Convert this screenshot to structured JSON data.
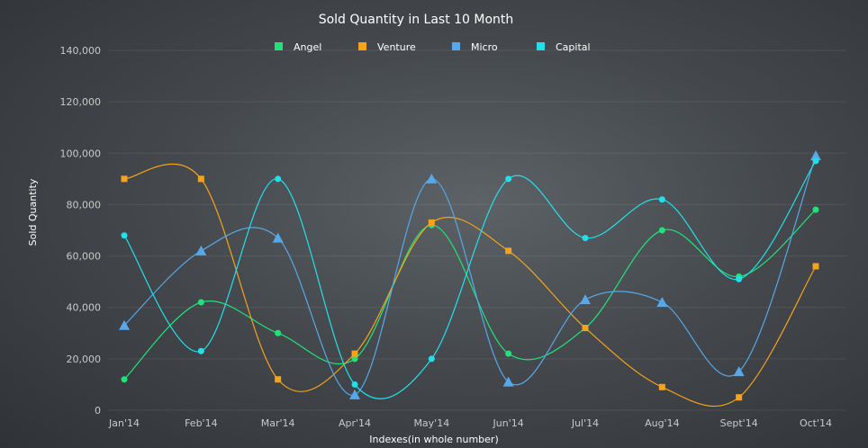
{
  "chart_data": {
    "type": "line",
    "title": "Sold Quantity in Last 10 Month",
    "xlabel": "Indexes(in whole number)",
    "ylabel": "Sold Quantity",
    "categories": [
      "Jan'14",
      "Feb'14",
      "Mar'14",
      "Apr'14",
      "May'14",
      "Jun'14",
      "Jul'14",
      "Aug'14",
      "Sept'14",
      "Oct'14"
    ],
    "ylim": [
      0,
      140000
    ],
    "y_ticks": [
      "0",
      "20,000",
      "40,000",
      "60,000",
      "80,000",
      "100,000",
      "120,000",
      "140,000"
    ],
    "grid": true,
    "legend_position": "top",
    "series": [
      {
        "name": "Angel",
        "color": "#1fe37a",
        "marker": "circle",
        "values": [
          12000,
          42000,
          30000,
          20000,
          72000,
          22000,
          32000,
          70000,
          52000,
          78000
        ]
      },
      {
        "name": "Venture",
        "color": "#f5a31a",
        "marker": "square",
        "values": [
          90000,
          90000,
          12000,
          22000,
          73000,
          62000,
          32000,
          9000,
          5000,
          56000
        ]
      },
      {
        "name": "Micro",
        "color": "#56a8e8",
        "marker": "triangle",
        "values": [
          33000,
          62000,
          67000,
          6000,
          90000,
          11000,
          43000,
          42000,
          15000,
          99000
        ]
      },
      {
        "name": "Capital",
        "color": "#22e0ea",
        "marker": "circle",
        "values": [
          68000,
          23000,
          90000,
          10000,
          20000,
          90000,
          67000,
          82000,
          51000,
          97000
        ]
      }
    ]
  }
}
